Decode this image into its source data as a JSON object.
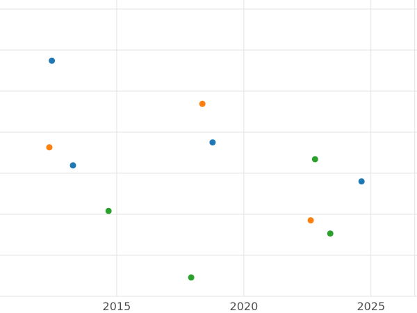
{
  "chart_data": {
    "type": "scatter",
    "title": "",
    "xlabel": "",
    "ylabel": "",
    "x_ticks": [
      2015,
      2020,
      2025
    ],
    "x_tick_labels": [
      "2015",
      "2020",
      "2025"
    ],
    "extra_x_gridlines": [
      2026.72
    ],
    "y_gridlines": [
      0,
      1,
      2,
      3,
      4,
      5,
      6,
      7
    ],
    "xlim": [
      2010.41,
      2026.81
    ],
    "ylim": [
      0,
      7.22
    ],
    "grid": true,
    "legend": "none",
    "series": [
      {
        "name": "blue",
        "color": "#1f77b4",
        "points": [
          [
            2012.45,
            5.74
          ],
          [
            2013.28,
            3.19
          ],
          [
            2018.77,
            3.75
          ],
          [
            2024.63,
            2.8
          ]
        ]
      },
      {
        "name": "orange",
        "color": "#ff7f0e",
        "points": [
          [
            2012.35,
            3.63
          ],
          [
            2018.37,
            4.69
          ],
          [
            2022.63,
            1.85
          ]
        ]
      },
      {
        "name": "green",
        "color": "#2ca02c",
        "points": [
          [
            2014.68,
            2.08
          ],
          [
            2017.93,
            0.46
          ],
          [
            2022.8,
            3.34
          ],
          [
            2023.4,
            1.53
          ]
        ]
      }
    ],
    "style": {
      "background": "#ffffff",
      "grid_color": "#e3e3e3",
      "tick_label_color": "#4d4d4d",
      "tick_fontsize": 16,
      "marker_radius": 4.5
    }
  }
}
